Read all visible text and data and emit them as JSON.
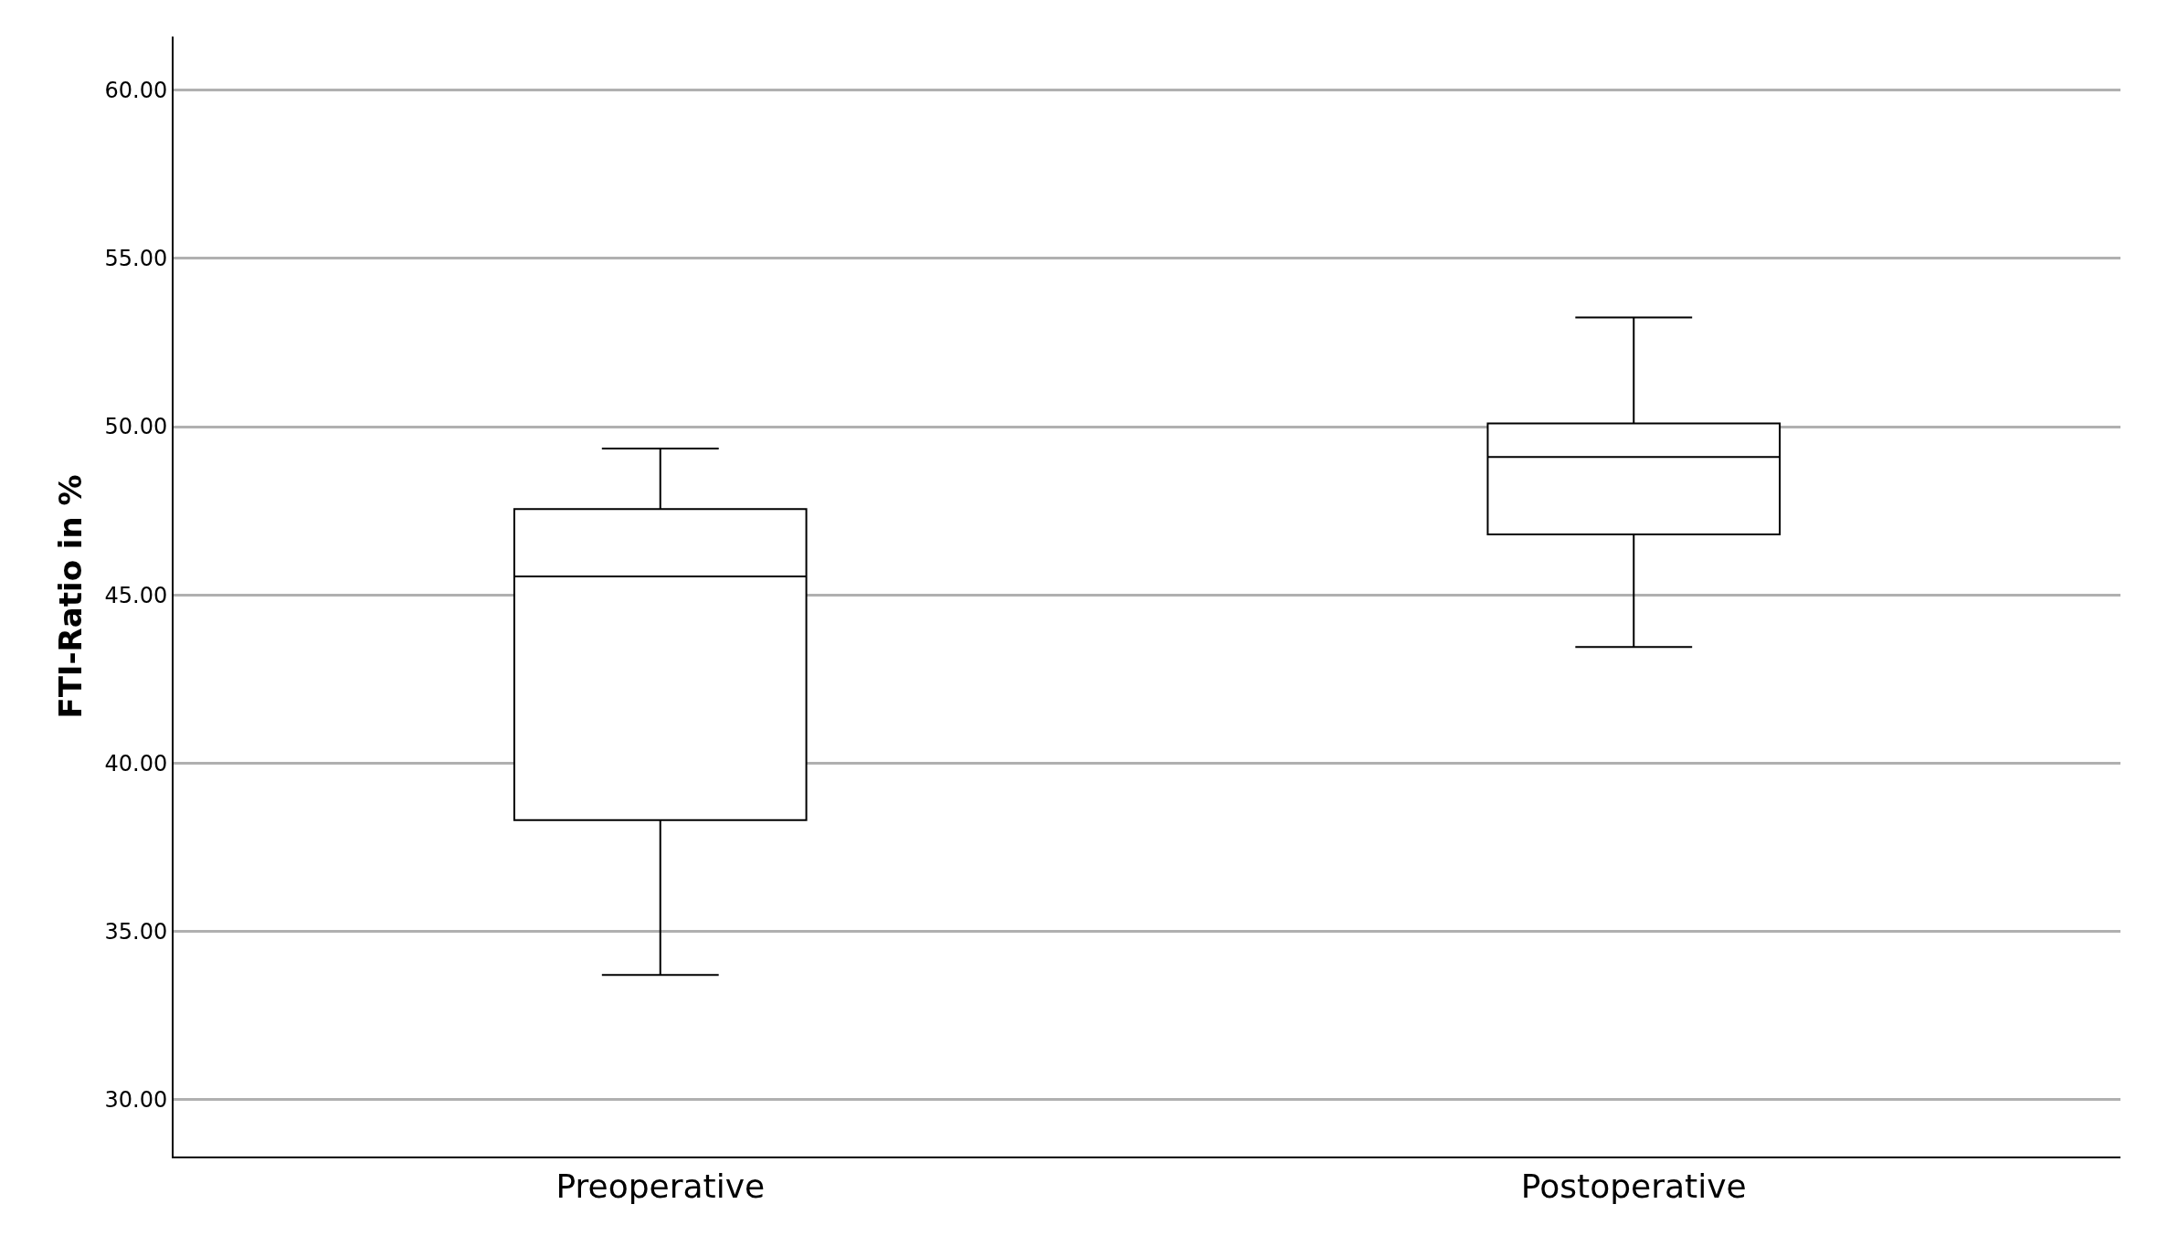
{
  "chart_data": {
    "type": "box",
    "ylabel": "FTI-Ratio in %",
    "categories": [
      "Preoperative",
      "Postoperative"
    ],
    "boxes": [
      {
        "low": 33.7,
        "q1": 38.3,
        "median": 45.55,
        "q3": 47.55,
        "high": 49.35
      },
      {
        "low": 43.45,
        "q1": 46.8,
        "median": 49.1,
        "q3": 50.1,
        "high": 53.25
      }
    ],
    "color": "#000000",
    "ylim": [
      28.3,
      61.6
    ],
    "yticks": [
      {
        "value": 30,
        "label": "30.00"
      },
      {
        "value": 35,
        "label": "35.00"
      },
      {
        "value": 40,
        "label": "40.00"
      },
      {
        "value": 45,
        "label": "45.00"
      },
      {
        "value": 50,
        "label": "50.00"
      },
      {
        "value": 55,
        "label": "55.00"
      },
      {
        "value": 60,
        "label": "60.00"
      }
    ],
    "grid": "y"
  }
}
